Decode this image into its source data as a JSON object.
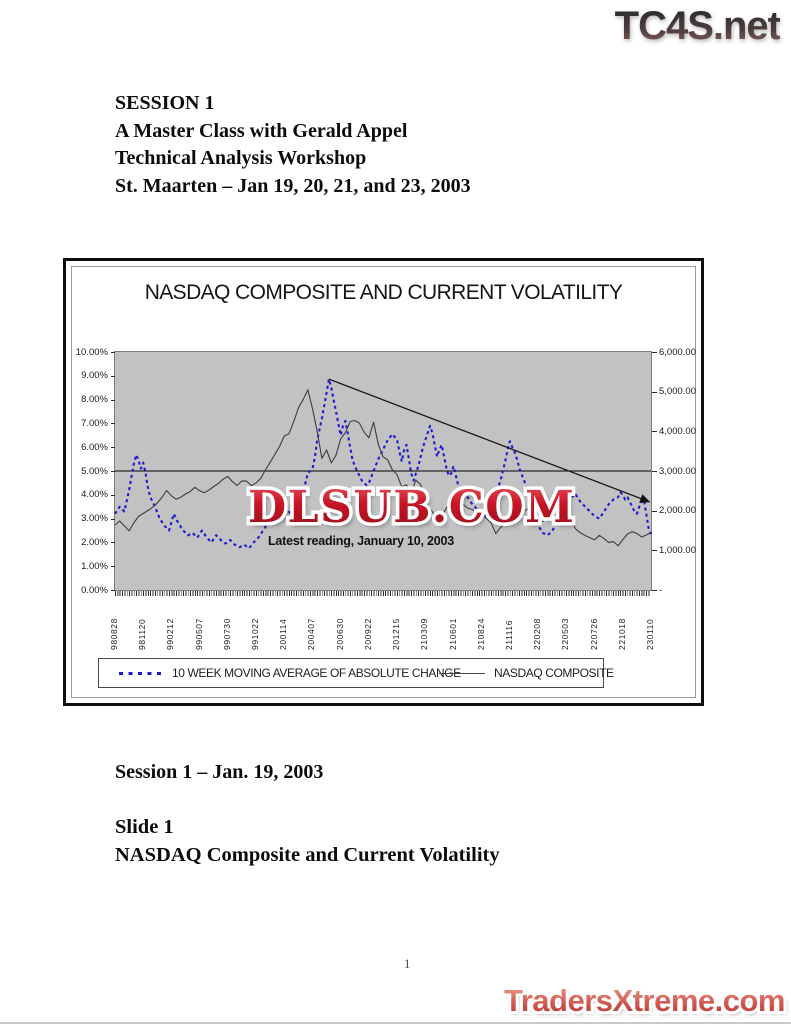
{
  "watermarks": {
    "top_right": "TC4S.net",
    "chart_center": "DLSUB.COM",
    "bottom_right": "TradersXtreme.com"
  },
  "header": {
    "lines": [
      "SESSION 1",
      "A Master Class with Gerald Appel",
      "Technical Analysis Workshop",
      "St. Maarten – Jan 19, 20, 21, and 23, 2003"
    ]
  },
  "footer": {
    "session_line": "Session 1 – Jan. 19, 2003",
    "slide_label": "Slide 1",
    "slide_title": "NASDAQ Composite and Current Volatility",
    "page_number": "1"
  },
  "colors": {
    "plot_background": "#c2c2c2",
    "volatility_line": "#1b1bd1",
    "nasdaq_line": "#3d3d3d",
    "watermark_red": "#c81525",
    "figure_border": "#0d0d0d"
  },
  "chart_data": {
    "type": "line",
    "title": "NASDAQ COMPOSITE AND CURRENT VOLATILITY",
    "annotation": "Latest reading, January 10, 2003",
    "grid": false,
    "legend_position": "bottom",
    "left_axis": {
      "min": 0,
      "max": 10,
      "unit": "%",
      "labels": [
        "10.00%",
        "9.00%",
        "8.00%",
        "7.00%",
        "6.00%",
        "5.00%",
        "4.00%",
        "3.00%",
        "2.00%",
        "1.00%",
        "0.00%"
      ]
    },
    "right_axis": {
      "min": 0,
      "max": 6000,
      "labels": [
        "6,000.00",
        "5,000.00",
        "4,000.00",
        "3,000.00",
        "2,000.00",
        "1,000.00",
        "-"
      ]
    },
    "x_weeks_total": 228,
    "x_label_every": 12,
    "x_tick_labels": [
      "980828",
      "981120",
      "990212",
      "990507",
      "990730",
      "991022",
      "200114",
      "200407",
      "200630",
      "200922",
      "201215",
      "210309",
      "210601",
      "210824",
      "211116",
      "220208",
      "220503",
      "220726",
      "221018",
      "230110"
    ],
    "reference_line_pct": 5.0,
    "trendline": {
      "from_week": 91,
      "from_pct": 8.86,
      "to_week": 227,
      "to_pct": 3.72
    },
    "series": [
      {
        "name": "10 WEEK MOVING AVERAGE OF ABSOLUTE CHANGE",
        "axis": "left",
        "style": "dashed",
        "color": "#1b1bd1",
        "width": 2.1,
        "points": [
          [
            0,
            3.2
          ],
          [
            2,
            3.5
          ],
          [
            4,
            3.3
          ],
          [
            6,
            4.2
          ],
          [
            8,
            5.3
          ],
          [
            9,
            5.68
          ],
          [
            10,
            5.45
          ],
          [
            11,
            5.1
          ],
          [
            12,
            5.35
          ],
          [
            13,
            4.9
          ],
          [
            14,
            4.3
          ],
          [
            15,
            3.9
          ],
          [
            17,
            3.5
          ],
          [
            19,
            3.0
          ],
          [
            21,
            2.7
          ],
          [
            23,
            2.5
          ],
          [
            25,
            3.2
          ],
          [
            27,
            2.8
          ],
          [
            29,
            2.5
          ],
          [
            31,
            2.3
          ],
          [
            33,
            2.4
          ],
          [
            35,
            2.2
          ],
          [
            37,
            2.5
          ],
          [
            39,
            2.2
          ],
          [
            41,
            2.0
          ],
          [
            43,
            2.3
          ],
          [
            45,
            2.1
          ],
          [
            47,
            1.95
          ],
          [
            49,
            2.1
          ],
          [
            51,
            1.9
          ],
          [
            53,
            1.8
          ],
          [
            55,
            1.9
          ],
          [
            57,
            1.75
          ],
          [
            59,
            2.0
          ],
          [
            61,
            2.2
          ],
          [
            63,
            2.5
          ],
          [
            65,
            2.8
          ],
          [
            67,
            3.2
          ],
          [
            69,
            3.5
          ],
          [
            71,
            3.7
          ],
          [
            73,
            3.5
          ],
          [
            75,
            3.1
          ],
          [
            76,
            2.9
          ],
          [
            78,
            3.4
          ],
          [
            80,
            4.1
          ],
          [
            82,
            4.9
          ],
          [
            84,
            5.1
          ],
          [
            85,
            5.55
          ],
          [
            86,
            6.3
          ],
          [
            88,
            7.2
          ],
          [
            90,
            8.3
          ],
          [
            91,
            8.86
          ],
          [
            92,
            8.5
          ],
          [
            93,
            8.0
          ],
          [
            94,
            7.5
          ],
          [
            95,
            7.0
          ],
          [
            96,
            6.5
          ],
          [
            97,
            6.9
          ],
          [
            98,
            7.1
          ],
          [
            99,
            6.6
          ],
          [
            100,
            6.0
          ],
          [
            101,
            5.5
          ],
          [
            102,
            5.2
          ],
          [
            103,
            5.0
          ],
          [
            104,
            4.8
          ],
          [
            105,
            4.6
          ],
          [
            106,
            4.5
          ],
          [
            107,
            4.4
          ],
          [
            108,
            4.5
          ],
          [
            110,
            5.0
          ],
          [
            112,
            5.5
          ],
          [
            114,
            5.9
          ],
          [
            116,
            6.3
          ],
          [
            118,
            6.55
          ],
          [
            120,
            6.3
          ],
          [
            121,
            5.8
          ],
          [
            122,
            5.4
          ],
          [
            123,
            5.9
          ],
          [
            124,
            6.1
          ],
          [
            125,
            5.5
          ],
          [
            126,
            4.9
          ],
          [
            127,
            4.6
          ],
          [
            129,
            5.2
          ],
          [
            131,
            6.0
          ],
          [
            133,
            6.6
          ],
          [
            134,
            6.9
          ],
          [
            135,
            6.6
          ],
          [
            136,
            6.1
          ],
          [
            137,
            5.6
          ],
          [
            138,
            5.9
          ],
          [
            139,
            6.1
          ],
          [
            140,
            5.6
          ],
          [
            141,
            5.1
          ],
          [
            142,
            4.8
          ],
          [
            143,
            4.9
          ],
          [
            144,
            5.2
          ],
          [
            145,
            4.8
          ],
          [
            146,
            4.4
          ],
          [
            148,
            4.1
          ],
          [
            150,
            3.9
          ],
          [
            152,
            3.6
          ],
          [
            154,
            3.4
          ],
          [
            156,
            3.2
          ],
          [
            158,
            3.1
          ],
          [
            160,
            3.3
          ],
          [
            162,
            4.0
          ],
          [
            164,
            4.6
          ],
          [
            166,
            5.4
          ],
          [
            167,
            5.9
          ],
          [
            168,
            6.25
          ],
          [
            169,
            6.0
          ],
          [
            170,
            5.8
          ],
          [
            171,
            5.5
          ],
          [
            172,
            5.1
          ],
          [
            174,
            4.6
          ],
          [
            176,
            4.0
          ],
          [
            178,
            3.3
          ],
          [
            180,
            2.7
          ],
          [
            182,
            2.4
          ],
          [
            184,
            2.3
          ],
          [
            186,
            2.5
          ],
          [
            188,
            2.8
          ],
          [
            190,
            3.4
          ],
          [
            192,
            4.0
          ],
          [
            193,
            4.2
          ],
          [
            194,
            4.1
          ],
          [
            195,
            3.9
          ],
          [
            196,
            4.0
          ],
          [
            198,
            3.7
          ],
          [
            200,
            3.5
          ],
          [
            202,
            3.3
          ],
          [
            204,
            3.1
          ],
          [
            206,
            3.0
          ],
          [
            208,
            3.3
          ],
          [
            210,
            3.6
          ],
          [
            212,
            3.8
          ],
          [
            214,
            3.9
          ],
          [
            215,
            4.1
          ],
          [
            216,
            4.0
          ],
          [
            217,
            3.8
          ],
          [
            218,
            3.9
          ],
          [
            219,
            3.7
          ],
          [
            220,
            3.5
          ],
          [
            221,
            3.3
          ],
          [
            222,
            3.2
          ],
          [
            223,
            3.5
          ],
          [
            224,
            3.7
          ],
          [
            225,
            3.8
          ],
          [
            226,
            3.2
          ],
          [
            227,
            2.6
          ],
          [
            228,
            2.35
          ]
        ]
      },
      {
        "name": "NASDAQ COMPOSITE",
        "axis": "right",
        "style": "solid",
        "color": "#3d3d3d",
        "width": 1.1,
        "points": [
          [
            0,
            1639
          ],
          [
            2,
            1740
          ],
          [
            4,
            1615
          ],
          [
            6,
            1492
          ],
          [
            8,
            1690
          ],
          [
            10,
            1856
          ],
          [
            12,
            1928
          ],
          [
            14,
            2003
          ],
          [
            16,
            2086
          ],
          [
            18,
            2193
          ],
          [
            20,
            2339
          ],
          [
            22,
            2505
          ],
          [
            24,
            2374
          ],
          [
            26,
            2288
          ],
          [
            28,
            2338
          ],
          [
            30,
            2419
          ],
          [
            32,
            2484
          ],
          [
            34,
            2590
          ],
          [
            36,
            2503
          ],
          [
            38,
            2454
          ],
          [
            40,
            2520
          ],
          [
            42,
            2610
          ],
          [
            44,
            2686
          ],
          [
            46,
            2793
          ],
          [
            48,
            2864
          ],
          [
            50,
            2730
          ],
          [
            52,
            2638
          ],
          [
            54,
            2750
          ],
          [
            56,
            2746
          ],
          [
            58,
            2632
          ],
          [
            60,
            2700
          ],
          [
            62,
            2816
          ],
          [
            64,
            3028
          ],
          [
            66,
            3221
          ],
          [
            68,
            3421
          ],
          [
            70,
            3621
          ],
          [
            72,
            3882
          ],
          [
            74,
            3940
          ],
          [
            76,
            4244
          ],
          [
            78,
            4590
          ],
          [
            80,
            4798
          ],
          [
            82,
            5048
          ],
          [
            84,
            4572
          ],
          [
            86,
            3999
          ],
          [
            88,
            3321
          ],
          [
            90,
            3529
          ],
          [
            92,
            3205
          ],
          [
            94,
            3400
          ],
          [
            96,
            3813
          ],
          [
            98,
            3966
          ],
          [
            100,
            4246
          ],
          [
            102,
            4274
          ],
          [
            104,
            4206
          ],
          [
            106,
            3978
          ],
          [
            108,
            3835
          ],
          [
            110,
            4234
          ],
          [
            112,
            3672
          ],
          [
            114,
            3361
          ],
          [
            116,
            3278
          ],
          [
            118,
            3028
          ],
          [
            120,
            2904
          ],
          [
            122,
            2597
          ],
          [
            124,
            2653
          ],
          [
            126,
            2470
          ],
          [
            128,
            2770
          ],
          [
            130,
            2660
          ],
          [
            132,
            2262
          ],
          [
            134,
            2052
          ],
          [
            136,
            1890
          ],
          [
            138,
            1638
          ],
          [
            140,
            1961
          ],
          [
            142,
            2163
          ],
          [
            144,
            2251
          ],
          [
            146,
            2313
          ],
          [
            148,
            2161
          ],
          [
            150,
            2067
          ],
          [
            152,
            2029
          ],
          [
            154,
            1943
          ],
          [
            156,
            1867
          ],
          [
            158,
            1805
          ],
          [
            160,
            1695
          ],
          [
            162,
            1423
          ],
          [
            164,
            1579
          ],
          [
            166,
            1671
          ],
          [
            168,
            1828
          ],
          [
            170,
            1903
          ],
          [
            172,
            1946
          ],
          [
            174,
            1987
          ],
          [
            176,
            2059
          ],
          [
            178,
            1950
          ],
          [
            180,
            1805
          ],
          [
            182,
            1724
          ],
          [
            184,
            1930
          ],
          [
            186,
            1845
          ],
          [
            188,
            1688
          ],
          [
            190,
            1664
          ],
          [
            192,
            1663
          ],
          [
            194,
            1741
          ],
          [
            196,
            1535
          ],
          [
            198,
            1440
          ],
          [
            200,
            1373
          ],
          [
            202,
            1319
          ],
          [
            204,
            1262
          ],
          [
            206,
            1380
          ],
          [
            208,
            1295
          ],
          [
            210,
            1199
          ],
          [
            212,
            1221
          ],
          [
            214,
            1114
          ],
          [
            216,
            1271
          ],
          [
            218,
            1411
          ],
          [
            220,
            1468
          ],
          [
            222,
            1426
          ],
          [
            224,
            1335
          ],
          [
            226,
            1387
          ],
          [
            228,
            1448
          ]
        ]
      }
    ]
  }
}
